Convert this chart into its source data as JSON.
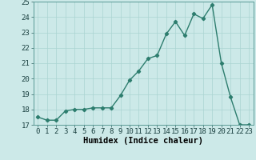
{
  "x": [
    0,
    1,
    2,
    3,
    4,
    5,
    6,
    7,
    8,
    9,
    10,
    11,
    12,
    13,
    14,
    15,
    16,
    17,
    18,
    19,
    20,
    21,
    22,
    23
  ],
  "y": [
    17.5,
    17.3,
    17.3,
    17.9,
    18.0,
    18.0,
    18.1,
    18.1,
    18.1,
    18.9,
    19.9,
    20.5,
    21.3,
    21.5,
    22.9,
    23.7,
    22.8,
    24.2,
    23.9,
    24.8,
    21.0,
    18.8,
    17.0,
    17.0
  ],
  "line_color": "#2d7d6e",
  "marker": "D",
  "marker_size": 2.2,
  "line_width": 1.0,
  "bg_color": "#cce9e8",
  "grid_color": "#aad4d2",
  "xlabel": "Humidex (Indice chaleur)",
  "ylim": [
    17,
    25
  ],
  "xlim": [
    -0.5,
    23.5
  ],
  "yticks": [
    17,
    18,
    19,
    20,
    21,
    22,
    23,
    24,
    25
  ],
  "xticks": [
    0,
    1,
    2,
    3,
    4,
    5,
    6,
    7,
    8,
    9,
    10,
    11,
    12,
    13,
    14,
    15,
    16,
    17,
    18,
    19,
    20,
    21,
    22,
    23
  ],
  "xlabel_fontsize": 7.5,
  "tick_fontsize": 6.5
}
